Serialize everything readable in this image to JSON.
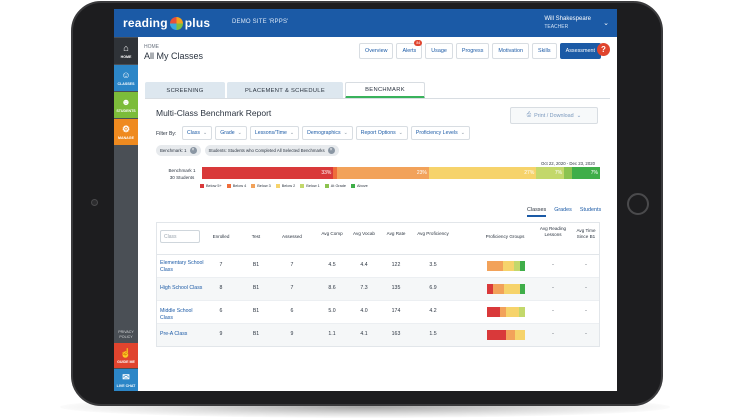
{
  "app": {
    "logo_text_left": "reading",
    "logo_text_right": "plus",
    "site": "DEMO SITE 'RPPS'",
    "user_name": "Will Shakespeare",
    "user_role": "TEACHER"
  },
  "leftnav": {
    "home": "HOME",
    "classes": "CLASSES",
    "students": "STUDENTS",
    "manage": "MANAGE",
    "privacy": "PRIVACY POLICY",
    "guide": "GUIDE ME",
    "chat": "LIVE CHAT"
  },
  "header": {
    "breadcrumb": "HOME",
    "title": "All My Classes",
    "tabs": [
      "Overview",
      "Alerts",
      "Usage",
      "Progress",
      "Motivation",
      "Skills",
      "Assessment"
    ],
    "alert_count": "84",
    "help": "?"
  },
  "subtabs": [
    "SCREENING",
    "PLACEMENT & SCHEDULE",
    "BENCHMARK"
  ],
  "report": {
    "title": "Multi-Class Benchmark Report",
    "print_label": "Print / Download",
    "filter_by": "Filter By:",
    "filters": [
      "Class",
      "Grade",
      "Lessons/Time",
      "Demographics",
      "Report Options",
      "Proficiency Levels"
    ],
    "chips": [
      "Benchmark: 1",
      "Students: Students who Completed All Selected Benchmarks"
    ],
    "date_range": "Oct 22, 2020 - Dec 23, 2020",
    "bench_name": "Benchmark 1",
    "bench_students": "30 Students",
    "distribution": [
      {
        "label": "Below 5+",
        "pct": 33,
        "color": "#d9393a",
        "text": "33%"
      },
      {
        "label": "Below 4",
        "pct": 1,
        "color": "#ef6d3b",
        "text": ""
      },
      {
        "label": "Below 3",
        "pct": 23,
        "color": "#f2a25a",
        "text": "23%"
      },
      {
        "label": "Below 2",
        "pct": 27,
        "color": "#f6d36b",
        "text": "27%"
      },
      {
        "label": "Below 1",
        "pct": 7,
        "color": "#c3d86b",
        "text": "7%"
      },
      {
        "label": "At Grade",
        "pct": 2,
        "color": "#8cc34f",
        "text": ""
      },
      {
        "label": "Above",
        "pct": 7,
        "color": "#3fae49",
        "text": "7%"
      }
    ],
    "view_tabs": [
      "Classes",
      "Grades",
      "Students"
    ]
  },
  "table": {
    "class_placeholder": "Class",
    "headers": [
      "Enrolled",
      "Test",
      "Assessed",
      "Avg Comp",
      "Avg Vocab",
      "Avg Rate",
      "Avg Proficiency",
      "Proficiency Groups",
      "Avg Reading Lessons",
      "Avg Time Since B1"
    ],
    "rows": [
      {
        "name": "Elementary School Class",
        "enrolled": "7",
        "test": "B1",
        "assessed": "7",
        "comp": "4.5",
        "vocab": "4.4",
        "rate": "122",
        "prof": "3.5",
        "lessons": "-",
        "time": "-",
        "groups": [
          {
            "pct": 42,
            "color": "#f2a25a"
          },
          {
            "pct": 30,
            "color": "#f6d36b"
          },
          {
            "pct": 14,
            "color": "#c3d86b"
          },
          {
            "pct": 14,
            "color": "#3fae49"
          }
        ]
      },
      {
        "name": "High School Class",
        "enrolled": "8",
        "test": "B1",
        "assessed": "7",
        "comp": "8.6",
        "vocab": "7.3",
        "rate": "135",
        "prof": "6.9",
        "lessons": "-",
        "time": "-",
        "groups": [
          {
            "pct": 16,
            "color": "#d9393a"
          },
          {
            "pct": 30,
            "color": "#f2a25a"
          },
          {
            "pct": 40,
            "color": "#f6d36b"
          },
          {
            "pct": 14,
            "color": "#3fae49"
          }
        ]
      },
      {
        "name": "Middle School Class",
        "enrolled": "6",
        "test": "B1",
        "assessed": "6",
        "comp": "5.0",
        "vocab": "4.0",
        "rate": "174",
        "prof": "4.2",
        "lessons": "-",
        "time": "-",
        "groups": [
          {
            "pct": 34,
            "color": "#d9393a"
          },
          {
            "pct": 16,
            "color": "#f2a25a"
          },
          {
            "pct": 34,
            "color": "#f6d36b"
          },
          {
            "pct": 16,
            "color": "#c3d86b"
          }
        ]
      },
      {
        "name": "Pre-A Class",
        "enrolled": "9",
        "test": "B1",
        "assessed": "9",
        "comp": "1.1",
        "vocab": "4.1",
        "rate": "163",
        "prof": "1.5",
        "lessons": "-",
        "time": "-",
        "groups": [
          {
            "pct": 50,
            "color": "#d9393a"
          },
          {
            "pct": 24,
            "color": "#f2a25a"
          },
          {
            "pct": 26,
            "color": "#f6d36b"
          }
        ]
      }
    ]
  }
}
